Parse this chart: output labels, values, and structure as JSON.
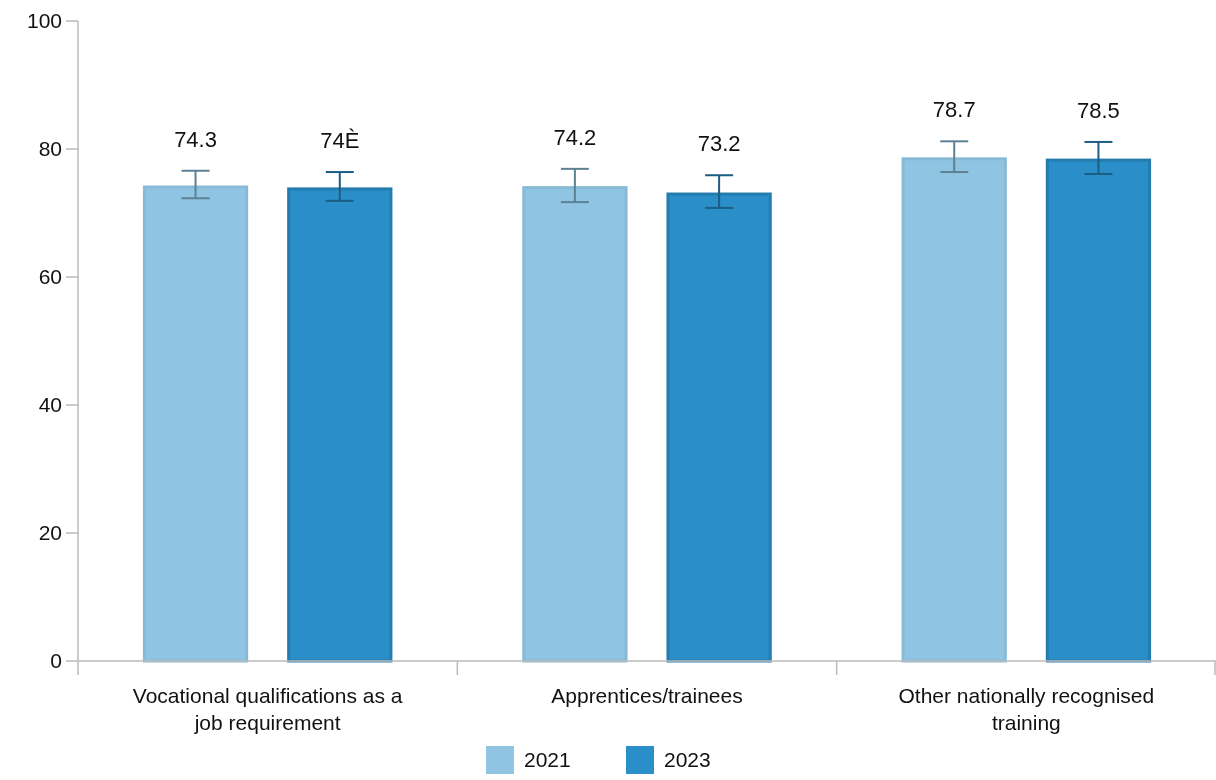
{
  "chart_data": {
    "type": "bar",
    "categories": [
      "Vocational qualifications as a job requirement",
      "Apprentices/trainees",
      "Other nationally recognised training"
    ],
    "series": [
      {
        "name": "2021",
        "color": "#8fc4e2",
        "values": [
          74.3,
          74.2,
          78.7
        ],
        "errors": [
          [
            72.3,
            76.6
          ],
          [
            71.7,
            76.9
          ],
          [
            76.4,
            81.2
          ]
        ],
        "value_labels": [
          "74.3",
          "74.2",
          "78.7"
        ]
      },
      {
        "name": "2023",
        "color": "#2a8fc9",
        "values": [
          74.0,
          73.2,
          78.5
        ],
        "errors": [
          [
            71.9,
            76.4
          ],
          [
            70.8,
            75.9
          ],
          [
            76.1,
            81.1
          ]
        ],
        "value_labels": [
          "74È",
          "73.2",
          "78.5"
        ]
      }
    ],
    "ylim": [
      0,
      100
    ],
    "yticks": [
      0,
      20,
      40,
      60,
      80,
      100
    ],
    "grid": false,
    "legend": "bottom"
  }
}
